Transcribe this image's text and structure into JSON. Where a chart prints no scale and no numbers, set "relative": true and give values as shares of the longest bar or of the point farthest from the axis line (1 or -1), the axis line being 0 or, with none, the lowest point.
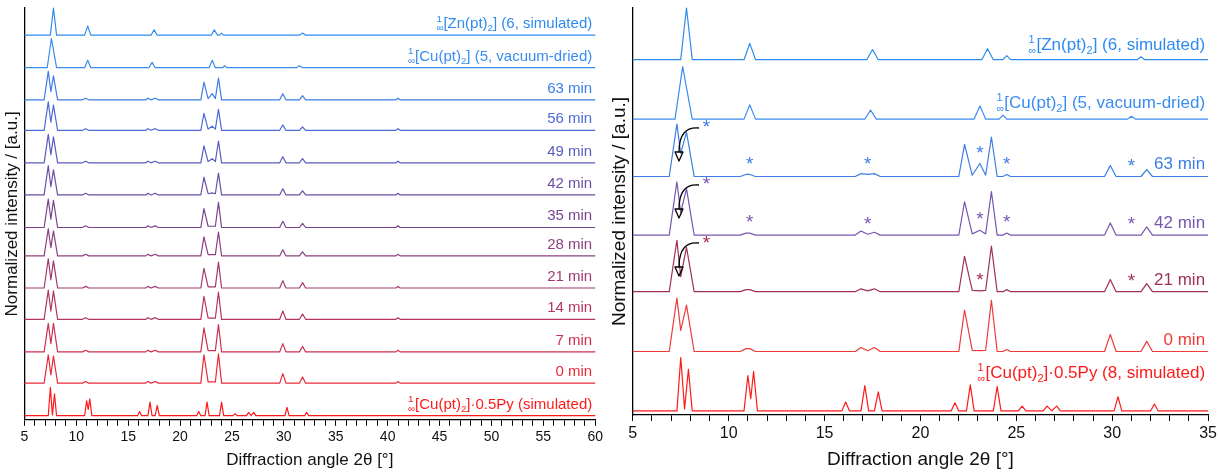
{
  "chart_data": [
    {
      "type": "line",
      "xlabel": "Diffraction angle 2θ [°]",
      "ylabel": "Normalized intensity / [a.u.]",
      "relative": true,
      "xlim": [
        5,
        60
      ],
      "xticks": [
        5,
        {
          "value": 6,
          "label": null
        },
        {
          "value": 7,
          "label": null
        },
        {
          "value": 8,
          "label": null
        },
        {
          "value": 9,
          "label": null
        },
        10,
        {
          "value": 11,
          "label": null
        },
        {
          "value": 12,
          "label": null
        },
        {
          "value": 13,
          "label": null
        },
        {
          "value": 14,
          "label": null
        },
        15,
        {
          "value": 16,
          "label": null
        },
        {
          "value": 17,
          "label": null
        },
        {
          "value": 18,
          "label": null
        },
        {
          "value": 19,
          "label": null
        },
        20,
        {
          "value": 21,
          "label": null
        },
        {
          "value": 22,
          "label": null
        },
        {
          "value": 23,
          "label": null
        },
        {
          "value": 24,
          "label": null
        },
        25,
        {
          "value": 26,
          "label": null
        },
        {
          "value": 27,
          "label": null
        },
        {
          "value": 28,
          "label": null
        },
        {
          "value": 29,
          "label": null
        },
        30,
        {
          "value": 31,
          "label": null
        },
        {
          "value": 32,
          "label": null
        },
        {
          "value": 33,
          "label": null
        },
        {
          "value": 34,
          "label": null
        },
        35,
        {
          "value": 36,
          "label": null
        },
        {
          "value": 37,
          "label": null
        },
        {
          "value": 38,
          "label": null
        },
        {
          "value": 39,
          "label": null
        },
        40,
        {
          "value": 41,
          "label": null
        },
        {
          "value": 42,
          "label": null
        },
        {
          "value": 43,
          "label": null
        },
        {
          "value": 44,
          "label": null
        },
        45,
        {
          "value": 46,
          "label": null
        },
        {
          "value": 47,
          "label": null
        },
        {
          "value": 48,
          "label": null
        },
        {
          "value": 49,
          "label": null
        },
        50,
        {
          "value": 51,
          "label": null
        },
        {
          "value": 52,
          "label": null
        },
        {
          "value": 53,
          "label": null
        },
        {
          "value": 54,
          "label": null
        },
        55,
        {
          "value": 56,
          "label": null
        },
        {
          "value": 57,
          "label": null
        },
        {
          "value": 58,
          "label": null
        },
        {
          "value": 59,
          "label": null
        },
        60
      ],
      "series": [
        {
          "name": "$_{∞}$$^{1}$[Zn(pt)$_{2}$] (6, simulated)",
          "color": "#2e8bef",
          "x": [
            5,
            7.5,
            7.8,
            8.1,
            10.8,
            11.1,
            11.4,
            17.2,
            17.5,
            17.8,
            23.0,
            23.3,
            23.6,
            23.8,
            24.0,
            24.2,
            31.5,
            31.8,
            32.1,
            60
          ],
          "values": [
            0.934,
            0.934,
            1,
            0.934,
            0.934,
            0.956,
            0.934,
            0.934,
            0.947,
            0.934,
            0.934,
            0.947,
            0.934,
            0.934,
            0.939,
            0.934,
            0.934,
            0.939,
            0.934,
            0.934
          ]
        },
        {
          "name": "$_{∞}$$^{1}$[Cu(pt)$_{2}$] (5, vacuum-dried)",
          "color": "#3a8cf0",
          "x": [
            5,
            7.2,
            7.6,
            8.1,
            10.8,
            11.1,
            11.4,
            17.0,
            17.3,
            17.6,
            22.8,
            23.1,
            23.4,
            24.1,
            24.3,
            24.5,
            31.2,
            31.5,
            31.8,
            60
          ],
          "values": [
            0.855,
            0.855,
            0.926,
            0.855,
            0.855,
            0.873,
            0.855,
            0.855,
            0.868,
            0.855,
            0.855,
            0.873,
            0.855,
            0.855,
            0.86,
            0.855,
            0.855,
            0.86,
            0.855,
            0.855
          ]
        },
        {
          "name": "63 min",
          "color": "#3d7ee6",
          "x": [
            5,
            6.9,
            7.3,
            7.55,
            7.8,
            8.2,
            10.6,
            10.9,
            11.2,
            16.7,
            16.9,
            17.2,
            17.6,
            17.9,
            22.0,
            22.3,
            22.7,
            23.1,
            23.4,
            23.7,
            24.0,
            29.6,
            29.9,
            30.2,
            31.5,
            31.8,
            32.1,
            40.8,
            41,
            41.2,
            60
          ],
          "values": [
            0.777,
            0.777,
            0.846,
            0.797,
            0.835,
            0.777,
            0.777,
            0.781,
            0.777,
            0.777,
            0.781,
            0.777,
            0.781,
            0.777,
            0.777,
            0.82,
            0.78,
            0.792,
            0.78,
            0.83,
            0.777,
            0.777,
            0.792,
            0.777,
            0.777,
            0.787,
            0.777,
            0.777,
            0.781,
            0.777,
            0.777
          ]
        },
        {
          "name": "56 min",
          "color": "#4d6bd8",
          "x": [
            5,
            6.9,
            7.3,
            7.55,
            7.8,
            8.2,
            10.6,
            10.9,
            11.2,
            16.7,
            16.9,
            17.2,
            17.6,
            17.9,
            22.0,
            22.3,
            22.7,
            23.1,
            23.4,
            23.7,
            24.0,
            29.6,
            29.9,
            30.2,
            31.5,
            31.8,
            32.1,
            40.8,
            41,
            41.2,
            60
          ],
          "values": [
            0.703,
            0.703,
            0.772,
            0.723,
            0.764,
            0.703,
            0.703,
            0.707,
            0.703,
            0.703,
            0.707,
            0.703,
            0.707,
            0.703,
            0.703,
            0.744,
            0.706,
            0.713,
            0.706,
            0.754,
            0.703,
            0.703,
            0.716,
            0.703,
            0.703,
            0.711,
            0.703,
            0.703,
            0.707,
            0.703,
            0.703
          ]
        },
        {
          "name": "49 min",
          "color": "#5a5cc0",
          "x": [
            5,
            6.9,
            7.3,
            7.55,
            7.8,
            8.2,
            10.6,
            10.9,
            11.2,
            16.7,
            16.9,
            17.2,
            17.6,
            17.9,
            22.0,
            22.3,
            22.7,
            23.1,
            23.4,
            23.7,
            24.0,
            29.6,
            29.9,
            30.2,
            31.5,
            31.8,
            32.1,
            40.8,
            41,
            41.2,
            60
          ],
          "values": [
            0.624,
            0.624,
            0.693,
            0.644,
            0.687,
            0.624,
            0.624,
            0.628,
            0.624,
            0.624,
            0.628,
            0.624,
            0.628,
            0.624,
            0.624,
            0.665,
            0.627,
            0.634,
            0.627,
            0.677,
            0.624,
            0.624,
            0.639,
            0.624,
            0.624,
            0.634,
            0.624,
            0.624,
            0.628,
            0.624,
            0.624
          ]
        },
        {
          "name": "42 min",
          "color": "#6a4fa8",
          "x": [
            5,
            6.9,
            7.3,
            7.55,
            7.8,
            8.2,
            10.6,
            10.9,
            11.2,
            16.7,
            16.9,
            17.2,
            17.6,
            17.9,
            22.0,
            22.3,
            22.7,
            23.1,
            23.4,
            23.7,
            24.0,
            29.6,
            29.9,
            30.2,
            31.5,
            31.8,
            32.1,
            40.8,
            41,
            41.2,
            60
          ],
          "values": [
            0.546,
            0.546,
            0.617,
            0.566,
            0.607,
            0.546,
            0.546,
            0.55,
            0.546,
            0.546,
            0.55,
            0.546,
            0.55,
            0.546,
            0.546,
            0.589,
            0.549,
            0.551,
            0.549,
            0.599,
            0.546,
            0.546,
            0.561,
            0.546,
            0.546,
            0.556,
            0.546,
            0.546,
            0.55,
            0.546,
            0.546
          ]
        },
        {
          "name": "35 min",
          "color": "#7a4590",
          "x": [
            5,
            6.9,
            7.3,
            7.55,
            7.8,
            8.2,
            10.6,
            10.9,
            11.2,
            16.7,
            16.9,
            17.2,
            17.6,
            17.9,
            22.0,
            22.3,
            22.7,
            23.1,
            23.4,
            23.7,
            24.0,
            29.6,
            29.9,
            30.2,
            31.5,
            31.8,
            32.1,
            40.8,
            41,
            41.2,
            60
          ],
          "values": [
            0.467,
            0.467,
            0.536,
            0.487,
            0.533,
            0.467,
            0.467,
            0.471,
            0.467,
            0.467,
            0.471,
            0.467,
            0.471,
            0.467,
            0.467,
            0.513,
            0.47,
            0.47,
            0.47,
            0.528,
            0.467,
            0.467,
            0.482,
            0.467,
            0.467,
            0.477,
            0.467,
            0.467,
            0.471,
            0.467,
            0.467
          ]
        },
        {
          "name": "28 min",
          "color": "#8c4080",
          "x": [
            5,
            6.9,
            7.3,
            7.55,
            7.8,
            8.2,
            10.6,
            10.9,
            11.2,
            16.7,
            16.9,
            17.2,
            17.6,
            17.9,
            22.0,
            22.3,
            22.7,
            23.1,
            23.4,
            23.7,
            24.0,
            29.6,
            29.9,
            30.2,
            31.5,
            31.8,
            32.1,
            40.8,
            41,
            41.2,
            60
          ],
          "values": [
            0.398,
            0.398,
            0.464,
            0.418,
            0.459,
            0.398,
            0.398,
            0.402,
            0.398,
            0.398,
            0.402,
            0.398,
            0.402,
            0.398,
            0.398,
            0.444,
            0.401,
            0.401,
            0.401,
            0.456,
            0.398,
            0.398,
            0.413,
            0.398,
            0.398,
            0.408,
            0.398,
            0.398,
            0.402,
            0.398,
            0.398
          ]
        },
        {
          "name": "21 min",
          "color": "#a03a70",
          "x": [
            5,
            6.9,
            7.3,
            7.55,
            7.8,
            8.2,
            10.6,
            10.9,
            11.2,
            16.7,
            16.9,
            17.2,
            17.6,
            17.9,
            22.0,
            22.3,
            22.7,
            23.1,
            23.4,
            23.7,
            24.0,
            29.6,
            29.9,
            30.2,
            31.5,
            31.8,
            32.1,
            40.8,
            41,
            41.2,
            60
          ],
          "values": [
            0.32,
            0.32,
            0.391,
            0.34,
            0.386,
            0.32,
            0.32,
            0.324,
            0.32,
            0.32,
            0.324,
            0.32,
            0.324,
            0.32,
            0.32,
            0.368,
            0.323,
            0.323,
            0.323,
            0.383,
            0.32,
            0.32,
            0.338,
            0.32,
            0.32,
            0.333,
            0.32,
            0.32,
            0.324,
            0.32,
            0.32
          ]
        },
        {
          "name": "14 min",
          "color": "#b53660",
          "x": [
            5,
            6.9,
            7.3,
            7.55,
            7.8,
            8.2,
            10.6,
            10.9,
            11.2,
            16.7,
            16.9,
            17.2,
            17.6,
            17.9,
            22.0,
            22.3,
            22.7,
            23.1,
            23.4,
            23.7,
            24.0,
            29.6,
            29.9,
            30.2,
            31.5,
            31.8,
            32.1,
            40.8,
            41,
            41.2,
            60
          ],
          "values": [
            0.244,
            0.244,
            0.315,
            0.264,
            0.313,
            0.244,
            0.244,
            0.248,
            0.244,
            0.244,
            0.248,
            0.244,
            0.248,
            0.244,
            0.244,
            0.3,
            0.247,
            0.247,
            0.247,
            0.31,
            0.244,
            0.244,
            0.264,
            0.244,
            0.244,
            0.257,
            0.244,
            0.244,
            0.248,
            0.244,
            0.244
          ]
        },
        {
          "name": "7 min",
          "color": "#cc3050",
          "x": [
            5,
            6.9,
            7.3,
            7.55,
            7.8,
            8.2,
            10.6,
            10.9,
            11.2,
            16.7,
            16.9,
            17.2,
            17.6,
            17.9,
            22.0,
            22.3,
            22.7,
            23.1,
            23.4,
            23.7,
            24.0,
            29.6,
            29.9,
            30.2,
            31.5,
            31.8,
            32.1,
            40.8,
            41,
            41.2,
            60
          ],
          "values": [
            0.165,
            0.165,
            0.234,
            0.185,
            0.234,
            0.165,
            0.165,
            0.169,
            0.165,
            0.165,
            0.169,
            0.165,
            0.169,
            0.165,
            0.165,
            0.223,
            0.168,
            0.168,
            0.168,
            0.231,
            0.165,
            0.165,
            0.185,
            0.165,
            0.165,
            0.178,
            0.165,
            0.165,
            0.169,
            0.165,
            0.165
          ]
        },
        {
          "name": "0 min",
          "color": "#e82a3a",
          "x": [
            5,
            6.9,
            7.3,
            7.55,
            7.8,
            8.2,
            10.6,
            10.9,
            11.2,
            16.7,
            16.9,
            17.2,
            17.6,
            17.9,
            22.0,
            22.3,
            22.7,
            23.1,
            23.4,
            23.7,
            24.0,
            29.6,
            29.9,
            30.2,
            31.5,
            31.8,
            32.1,
            40.8,
            41,
            41.2,
            60
          ],
          "values": [
            0.089,
            0.089,
            0.158,
            0.109,
            0.155,
            0.089,
            0.089,
            0.093,
            0.089,
            0.089,
            0.093,
            0.089,
            0.093,
            0.089,
            0.089,
            0.158,
            0.092,
            0.092,
            0.092,
            0.16,
            0.089,
            0.089,
            0.112,
            0.089,
            0.089,
            0.104,
            0.089,
            0.089,
            0.093,
            0.089,
            0.089
          ]
        },
        {
          "name": "$_{∞}$$^{1}$[Cu(pt)$_{2}$]·0.5Py (simulated)",
          "color": "#ff1a1a",
          "x": [
            5,
            7.3,
            7.5,
            7.7,
            7.9,
            8.1,
            10.8,
            11.0,
            11.15,
            11.3,
            11.5,
            15.9,
            16.1,
            16.3,
            16.9,
            17.1,
            17.3,
            17.6,
            17.8,
            18.0,
            21.6,
            21.8,
            22.0,
            22.4,
            22.6,
            22.8,
            23.8,
            24.0,
            24.2,
            25.1,
            25.3,
            25.5,
            26.4,
            26.6,
            26.85,
            27.1,
            27.3,
            30.1,
            30.3,
            30.5,
            32.0,
            32.2,
            32.4,
            60
          ],
          "values": [
            0.01,
            0.01,
            0.079,
            0.012,
            0.063,
            0.01,
            0.01,
            0.046,
            0.025,
            0.051,
            0.01,
            0.01,
            0.02,
            0.01,
            0.01,
            0.043,
            0.01,
            0.01,
            0.035,
            0.01,
            0.01,
            0.02,
            0.01,
            0.01,
            0.043,
            0.01,
            0.01,
            0.043,
            0.01,
            0.01,
            0.015,
            0.01,
            0.01,
            0.018,
            0.01,
            0.018,
            0.01,
            0.01,
            0.03,
            0.01,
            0.01,
            0.018,
            0.01,
            0.01
          ]
        }
      ]
    },
    {
      "type": "line",
      "xlabel": "Diffraction angle 2θ [°]",
      "ylabel": "Normalized intensity / [a.u.]",
      "relative": true,
      "xlim": [
        5,
        35
      ],
      "xticks": [
        5,
        {
          "value": 6,
          "label": null
        },
        {
          "value": 7,
          "label": null
        },
        {
          "value": 8,
          "label": null
        },
        {
          "value": 9,
          "label": null
        },
        10,
        {
          "value": 11,
          "label": null
        },
        {
          "value": 12,
          "label": null
        },
        {
          "value": 13,
          "label": null
        },
        {
          "value": 14,
          "label": null
        },
        15,
        {
          "value": 16,
          "label": null
        },
        {
          "value": 17,
          "label": null
        },
        {
          "value": 18,
          "label": null
        },
        {
          "value": 19,
          "label": null
        },
        20,
        {
          "value": 21,
          "label": null
        },
        {
          "value": 22,
          "label": null
        },
        {
          "value": 23,
          "label": null
        },
        {
          "value": 24,
          "label": null
        },
        25,
        {
          "value": 26,
          "label": null
        },
        {
          "value": 27,
          "label": null
        },
        {
          "value": 28,
          "label": null
        },
        {
          "value": 29,
          "label": null
        },
        30,
        {
          "value": 31,
          "label": null
        },
        {
          "value": 32,
          "label": null
        },
        {
          "value": 33,
          "label": null
        },
        {
          "value": 34,
          "label": null
        },
        35
      ],
      "series": [
        {
          "name": "$_{∞}$$^{1}$[Zn(pt)$_{2}$] (6, simulated)",
          "color": "#2e8bef",
          "x": [
            5,
            7.5,
            7.8,
            8.1,
            10.8,
            11.1,
            11.4,
            17.2,
            17.5,
            17.8,
            23.2,
            23.5,
            23.8,
            24.3,
            24.5,
            24.7,
            31.3,
            31.5,
            31.7,
            35
          ],
          "values": [
            0.873,
            0.873,
            1,
            0.873,
            0.873,
            0.913,
            0.873,
            0.873,
            0.898,
            0.873,
            0.873,
            0.9,
            0.873,
            0.873,
            0.883,
            0.873,
            0.873,
            0.88,
            0.873,
            0.873
          ]
        },
        {
          "name": "$_{∞}$$^{1}$[Cu(pt)$_{2}$] (5, vacuum-dried)",
          "color": "#3a8cf0",
          "x": [
            5,
            7.2,
            7.6,
            8.1,
            10.8,
            11.1,
            11.4,
            17.1,
            17.4,
            17.7,
            22.8,
            23.1,
            23.4,
            24.1,
            24.3,
            24.5,
            30.8,
            31.0,
            31.2,
            35
          ],
          "values": [
            0.727,
            0.727,
            0.856,
            0.727,
            0.727,
            0.762,
            0.727,
            0.727,
            0.749,
            0.727,
            0.727,
            0.759,
            0.727,
            0.727,
            0.737,
            0.727,
            0.727,
            0.734,
            0.727,
            0.727
          ]
        },
        {
          "name": "63 min",
          "color": "#3d7ee6",
          "x": [
            5,
            6.9,
            7.3,
            7.5,
            7.8,
            8.2,
            10.6,
            10.9,
            11.1,
            11.4,
            16.6,
            16.9,
            17.25,
            17.6,
            17.9,
            22.0,
            22.3,
            22.7,
            23.1,
            23.4,
            23.7,
            24.0,
            24.3,
            24.5,
            24.7,
            29.6,
            29.9,
            30.2,
            31.0,
            31.5,
            31.8,
            32.1,
            35
          ],
          "values": [
            0.586,
            0.586,
            0.715,
            0.643,
            0.695,
            0.586,
            0.586,
            0.591,
            0.591,
            0.586,
            0.586,
            0.593,
            0.591,
            0.593,
            0.586,
            0.586,
            0.665,
            0.589,
            0.618,
            0.589,
            0.683,
            0.586,
            0.586,
            0.591,
            0.586,
            0.586,
            0.613,
            0.586,
            0.586,
            0.586,
            0.603,
            0.586,
            0.586
          ]
        },
        {
          "name": "42 min",
          "color": "#7856b0",
          "x": [
            5,
            6.9,
            7.3,
            7.5,
            7.8,
            8.2,
            10.6,
            10.9,
            11.1,
            11.4,
            16.6,
            16.9,
            17.25,
            17.6,
            17.9,
            22.0,
            22.3,
            22.7,
            23.1,
            23.4,
            23.7,
            24.0,
            24.3,
            24.5,
            24.7,
            29.6,
            29.9,
            30.2,
            31.0,
            31.5,
            31.8,
            32.1,
            35
          ],
          "values": [
            0.442,
            0.442,
            0.573,
            0.497,
            0.556,
            0.442,
            0.442,
            0.447,
            0.447,
            0.442,
            0.442,
            0.452,
            0.444,
            0.449,
            0.442,
            0.442,
            0.524,
            0.445,
            0.454,
            0.445,
            0.549,
            0.442,
            0.442,
            0.447,
            0.442,
            0.442,
            0.472,
            0.442,
            0.442,
            0.442,
            0.462,
            0.442,
            0.442
          ]
        },
        {
          "name": "21 min",
          "color": "#a0305a",
          "x": [
            5,
            6.9,
            7.3,
            7.5,
            7.8,
            8.2,
            10.6,
            10.9,
            11.1,
            11.4,
            16.6,
            16.9,
            17.25,
            17.6,
            17.9,
            22.0,
            22.3,
            22.7,
            23.1,
            23.4,
            23.7,
            24.0,
            24.3,
            24.5,
            24.7,
            29.6,
            29.9,
            30.2,
            31.0,
            31.5,
            31.8,
            32.1,
            35
          ],
          "values": [
            0.303,
            0.303,
            0.429,
            0.34,
            0.412,
            0.303,
            0.303,
            0.308,
            0.308,
            0.303,
            0.303,
            0.31,
            0.305,
            0.31,
            0.303,
            0.303,
            0.39,
            0.306,
            0.305,
            0.306,
            0.415,
            0.303,
            0.303,
            0.308,
            0.303,
            0.303,
            0.333,
            0.303,
            0.303,
            0.303,
            0.323,
            0.303,
            0.303
          ]
        },
        {
          "name": "0 min",
          "color": "#ef3a3a",
          "x": [
            5,
            6.9,
            7.3,
            7.5,
            7.8,
            8.2,
            10.6,
            10.9,
            11.1,
            11.4,
            16.6,
            16.9,
            17.25,
            17.6,
            17.9,
            22.0,
            22.3,
            22.7,
            23.1,
            23.4,
            23.7,
            24.0,
            24.3,
            24.5,
            24.7,
            29.6,
            29.9,
            30.2,
            31.0,
            31.5,
            31.8,
            32.1,
            35
          ],
          "values": [
            0.156,
            0.156,
            0.287,
            0.208,
            0.27,
            0.156,
            0.156,
            0.163,
            0.163,
            0.156,
            0.156,
            0.166,
            0.158,
            0.166,
            0.156,
            0.156,
            0.258,
            0.159,
            0.158,
            0.159,
            0.282,
            0.156,
            0.156,
            0.161,
            0.156,
            0.156,
            0.198,
            0.156,
            0.156,
            0.156,
            0.181,
            0.156,
            0.156
          ]
        },
        {
          "name": "$_{∞}$$^{1}$[Cu(pt)$_{2}$]·0.5Py (8, simulated)",
          "color": "#ff1a1a",
          "x": [
            5,
            7.3,
            7.5,
            7.7,
            7.9,
            8.1,
            10.8,
            11.0,
            11.15,
            11.3,
            11.5,
            15.9,
            16.1,
            16.3,
            16.9,
            17.1,
            17.3,
            17.6,
            17.8,
            18.0,
            21.6,
            21.8,
            22.0,
            22.4,
            22.6,
            22.8,
            23.8,
            24.0,
            24.2,
            25.1,
            25.3,
            25.5,
            26.4,
            26.6,
            26.85,
            27.1,
            27.3,
            30.1,
            30.3,
            30.5,
            32.0,
            32.2,
            32.4,
            35
          ],
          "values": [
            0.01,
            0.01,
            0.141,
            0.015,
            0.112,
            0.01,
            0.01,
            0.097,
            0.04,
            0.107,
            0.01,
            0.01,
            0.032,
            0.01,
            0.01,
            0.072,
            0.01,
            0.01,
            0.057,
            0.01,
            0.01,
            0.03,
            0.01,
            0.01,
            0.074,
            0.01,
            0.01,
            0.07,
            0.01,
            0.01,
            0.022,
            0.01,
            0.01,
            0.022,
            0.01,
            0.022,
            0.01,
            0.01,
            0.045,
            0.01,
            0.01,
            0.027,
            0.01,
            0.01
          ]
        }
      ],
      "annotations": [
        {
          "text": "*",
          "x": 7.8,
          "y": 0.695
        },
        {
          "text": "*",
          "x": 11.1,
          "y": 0.591
        },
        {
          "text": "*",
          "x": 17.25,
          "y": 0.591
        },
        {
          "text": "*",
          "x": 23.1,
          "y": 0.618
        },
        {
          "text": "*",
          "x": 24.5,
          "y": 0.591
        },
        {
          "text": "*",
          "x": 31,
          "y": 0.586
        },
        {
          "text": "*",
          "x": 7.8,
          "y": 0.556
        },
        {
          "text": "*",
          "x": 11.1,
          "y": 0.447
        },
        {
          "text": "*",
          "x": 17.25,
          "y": 0.444
        },
        {
          "text": "*",
          "x": 23.1,
          "y": 0.454
        },
        {
          "text": "*",
          "x": 24.5,
          "y": 0.447
        },
        {
          "text": "*",
          "x": 31,
          "y": 0.442
        },
        {
          "text": "*",
          "x": 7.8,
          "y": 0.412
        },
        {
          "text": "*",
          "x": 23.1,
          "y": 0.305
        },
        {
          "text": "*",
          "x": 31,
          "y": 0.303
        }
      ]
    }
  ]
}
